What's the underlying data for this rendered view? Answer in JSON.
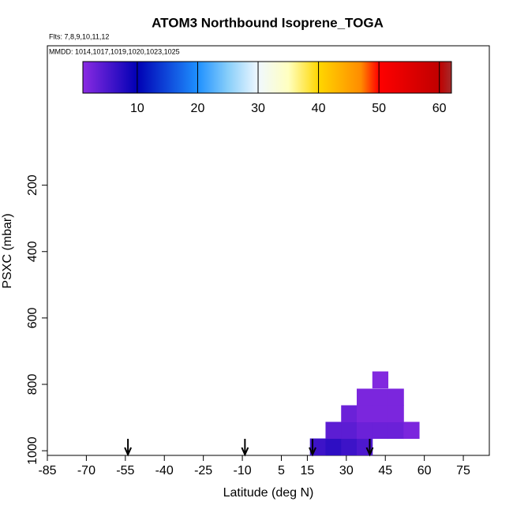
{
  "chart_data": {
    "type": "heatmap",
    "title": "ATOM3 Northbound Isoprene_TOGA",
    "annotations": [
      "Flts: 7,8,9,10,11,12",
      "MMDD: 1014,1017,1019,1020,1023,1025"
    ],
    "x_label": "Latitude (deg N)",
    "y_label": "PSXC (mbar)",
    "xlim": [
      -85,
      85
    ],
    "xticks": [
      -85,
      -70,
      -55,
      -40,
      -25,
      -10,
      5,
      15,
      30,
      45,
      60,
      75
    ],
    "ylim": [
      1014,
      -220
    ],
    "yticks": [
      200,
      400,
      600,
      800,
      1000
    ],
    "x": [
      19,
      25,
      31,
      37,
      25,
      31,
      37,
      43,
      49,
      55,
      31,
      37,
      43,
      49,
      37,
      43,
      49,
      43
    ],
    "y": [
      988,
      988,
      988,
      988,
      938,
      938,
      938,
      938,
      938,
      938,
      888,
      888,
      888,
      888,
      838,
      838,
      838,
      786
    ],
    "values": [
      6,
      7,
      6,
      5,
      4,
      4,
      3,
      3,
      3,
      2,
      3,
      2,
      2,
      2,
      2,
      2,
      2,
      1.5
    ],
    "markers_x": [
      -54,
      -9,
      17,
      39
    ],
    "colorbar": {
      "lim": [
        1,
        62
      ],
      "ticks": [
        10,
        20,
        30,
        40,
        50,
        60
      ],
      "colorscale": [
        [
          1,
          "#8a2be2"
        ],
        [
          10,
          "#0000b4"
        ],
        [
          20,
          "#1e90ff"
        ],
        [
          25,
          "#87cefa"
        ],
        [
          30,
          "#f0f8ff"
        ],
        [
          35,
          "#ffffc0"
        ],
        [
          40,
          "#ffd700"
        ],
        [
          47,
          "#ff8c00"
        ],
        [
          50,
          "#ff0000"
        ],
        [
          60,
          "#c00000"
        ],
        [
          62,
          "#a52a2a"
        ]
      ]
    }
  }
}
